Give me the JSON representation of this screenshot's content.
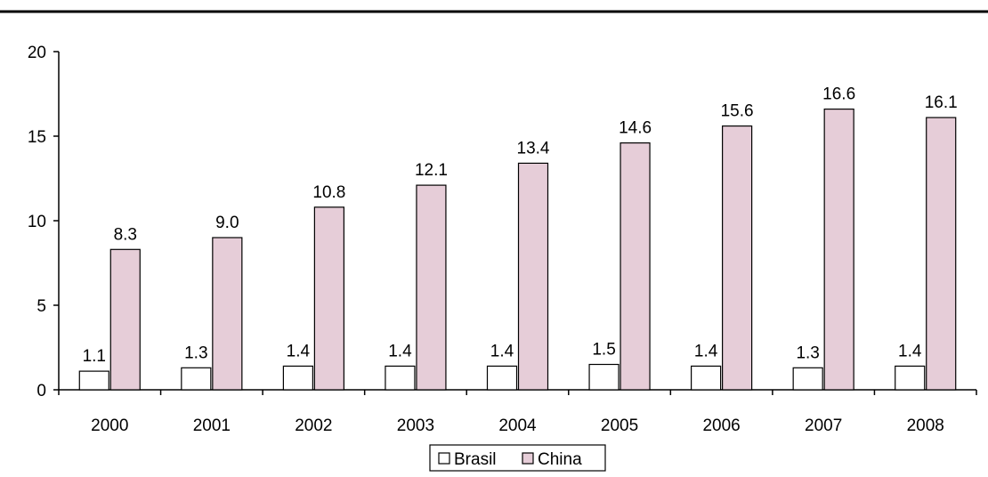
{
  "chart_data": {
    "type": "bar",
    "title": "",
    "xlabel": "",
    "ylabel": "",
    "categories": [
      "2000",
      "2001",
      "2002",
      "2003",
      "2004",
      "2005",
      "2006",
      "2007",
      "2008"
    ],
    "series": [
      {
        "name": "Brasil",
        "values": [
          1.1,
          1.3,
          1.4,
          1.4,
          1.4,
          1.5,
          1.4,
          1.3,
          1.4
        ],
        "labels": [
          "1.1",
          "1.3",
          "1.4",
          "1.4",
          "1.4",
          "1.5",
          "1.4",
          "1.3",
          "1.4"
        ],
        "color": "#ffffff"
      },
      {
        "name": "China",
        "values": [
          8.3,
          9.0,
          10.8,
          12.1,
          13.4,
          14.6,
          15.6,
          16.6,
          16.1
        ],
        "labels": [
          "8.3",
          "9.0",
          "10.8",
          "12.1",
          "13.4",
          "14.6",
          "15.6",
          "16.6",
          "16.1"
        ],
        "color": "#e6cdd8"
      }
    ],
    "ylim": [
      0,
      20
    ],
    "yticks": [
      "0",
      "5",
      "10",
      "15",
      "20"
    ],
    "grid": false,
    "legend": "bottom-center"
  }
}
